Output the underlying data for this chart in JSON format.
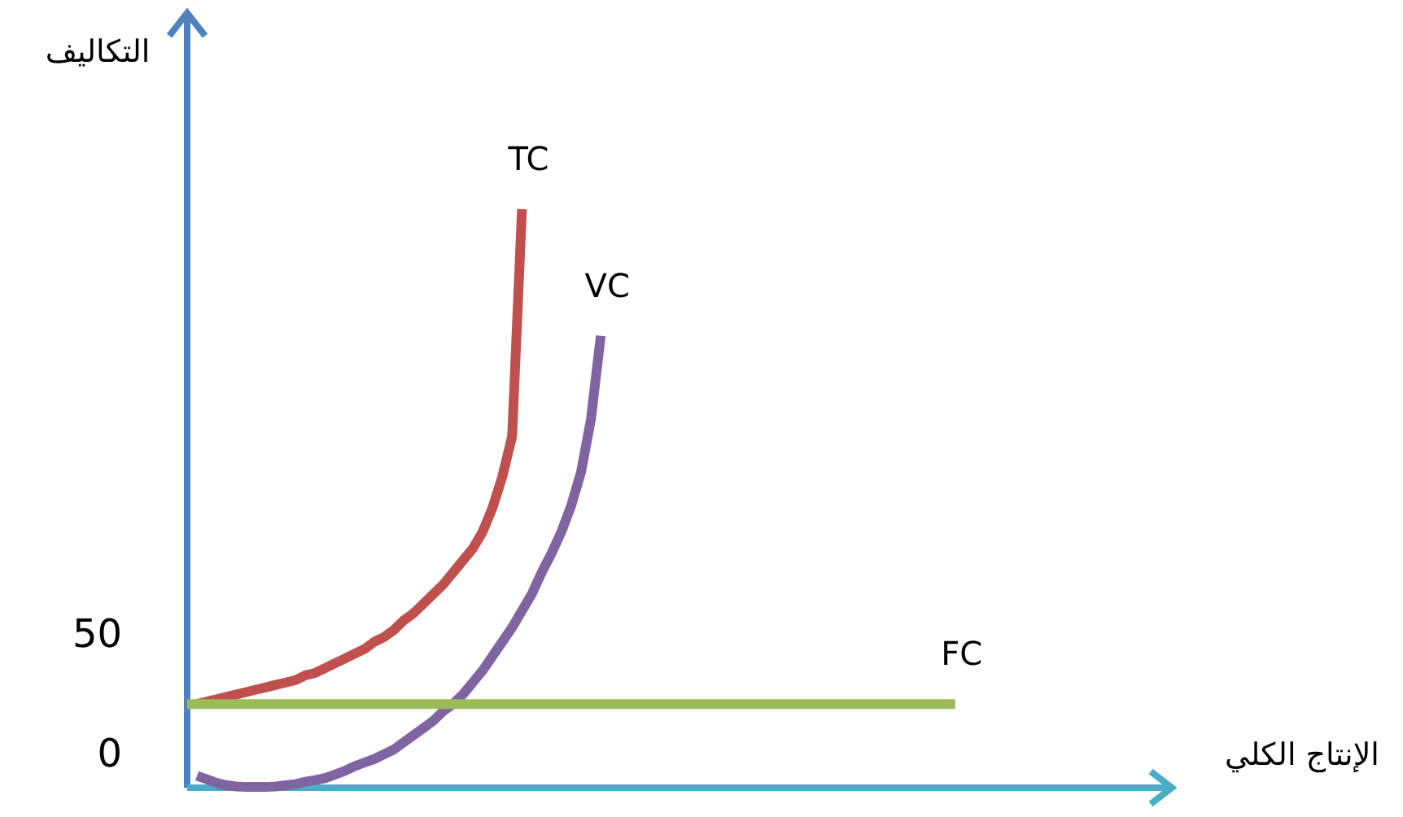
{
  "chart_data": {
    "type": "line",
    "xlabel": "الإنتاج الكلي",
    "ylabel": "التكاليف",
    "categories": [
      null,
      null,
      null,
      null,
      null,
      null,
      null,
      null,
      null,
      null,
      null,
      null,
      null,
      null,
      null,
      null,
      null,
      null,
      null,
      null,
      null,
      null,
      null,
      null,
      null,
      null,
      null,
      null,
      null,
      null,
      null,
      null,
      null,
      null,
      null,
      null,
      null,
      null,
      null,
      null,
      null,
      null,
      null,
      null,
      null,
      null,
      null,
      null,
      null,
      null,
      null,
      null,
      null,
      null,
      null,
      null,
      null,
      null,
      null,
      null,
      null,
      null,
      null,
      null,
      null,
      null,
      null,
      null,
      null,
      null,
      null,
      null,
      null,
      null,
      null,
      null,
      null,
      null,
      null,
      null,
      null,
      null,
      null,
      null,
      null,
      null,
      null,
      null,
      null,
      null,
      null,
      null,
      null,
      null,
      null,
      null,
      null,
      null,
      null,
      null,
      null
    ],
    "ylim": [
      -14,
      310
    ],
    "yticks": [
      0,
      50
    ],
    "tick_labels": "y",
    "grid": false,
    "legend": false,
    "marker": "none",
    "line_style": "solid",
    "series": [
      {
        "name": "TC",
        "color": "#c0504d",
        "values": [
          null,
          21,
          22,
          23,
          24,
          25,
          26,
          27,
          28,
          29,
          30,
          31,
          33,
          34,
          36,
          38,
          40,
          42,
          44,
          47,
          49,
          52,
          56,
          59,
          63,
          67,
          71,
          76,
          81,
          86,
          93,
          103,
          116,
          133,
          228,
          null,
          null,
          null,
          null,
          null,
          null,
          null,
          null,
          null,
          null,
          null,
          null,
          null,
          null,
          null,
          null,
          null,
          null,
          null,
          null,
          null,
          null,
          null,
          null,
          null,
          null,
          null,
          null,
          null,
          null,
          null,
          null,
          null,
          null,
          null,
          null,
          null,
          null,
          null,
          null,
          null,
          null,
          null,
          null,
          null,
          null,
          null,
          null,
          null,
          null,
          null,
          null,
          null,
          null,
          null,
          null,
          null,
          null,
          null,
          null,
          null,
          null,
          null,
          null,
          null,
          null
        ]
      },
      {
        "name": "VC",
        "color": "#8064a2",
        "values": [
          null,
          -9,
          -10.5,
          -12,
          -13,
          -13.5,
          -13.7,
          -13.7,
          -13.7,
          -13.5,
          -13,
          -12.5,
          -11.5,
          -10.8,
          -10,
          -8.5,
          -7,
          -5,
          -3.5,
          -2,
          0,
          2,
          5,
          8,
          11,
          14,
          18,
          21,
          25,
          30,
          35,
          41,
          47,
          53,
          60,
          67,
          76,
          84,
          93,
          104,
          118,
          140,
          175,
          null,
          null,
          null,
          null,
          null,
          null,
          null,
          null,
          null,
          null,
          null,
          null,
          null,
          null,
          null,
          null,
          null,
          null,
          null,
          null,
          null,
          null,
          null,
          null,
          null,
          null,
          null,
          null,
          null,
          null,
          null,
          null,
          null,
          null,
          null,
          null,
          null,
          null,
          null,
          null,
          null,
          null,
          null,
          null,
          null,
          null,
          null,
          null,
          null,
          null,
          null,
          null,
          null,
          null,
          null,
          null,
          null,
          null
        ]
      },
      {
        "name": "FC",
        "color": "#9bbb59",
        "values": [
          21,
          21,
          21,
          21,
          21,
          21,
          21,
          21,
          21,
          21,
          21,
          21,
          21,
          21,
          21,
          21,
          21,
          21,
          21,
          21,
          21,
          21,
          21,
          21,
          21,
          21,
          21,
          21,
          21,
          21,
          21,
          21,
          21,
          21,
          21,
          21,
          21,
          21,
          21,
          21,
          21,
          21,
          21,
          21,
          21,
          21,
          21,
          21,
          21,
          21,
          21,
          21,
          21,
          21,
          21,
          21,
          21,
          21,
          21,
          21,
          21,
          21,
          21,
          21,
          21,
          21,
          21,
          21,
          21,
          21,
          21,
          21,
          21,
          21,
          21,
          21,
          21,
          21,
          21,
          null,
          null,
          null,
          null,
          null,
          null,
          null,
          null,
          null,
          null,
          null,
          null,
          null,
          null,
          null,
          null,
          null,
          null,
          null,
          null,
          null,
          null
        ]
      }
    ]
  }
}
